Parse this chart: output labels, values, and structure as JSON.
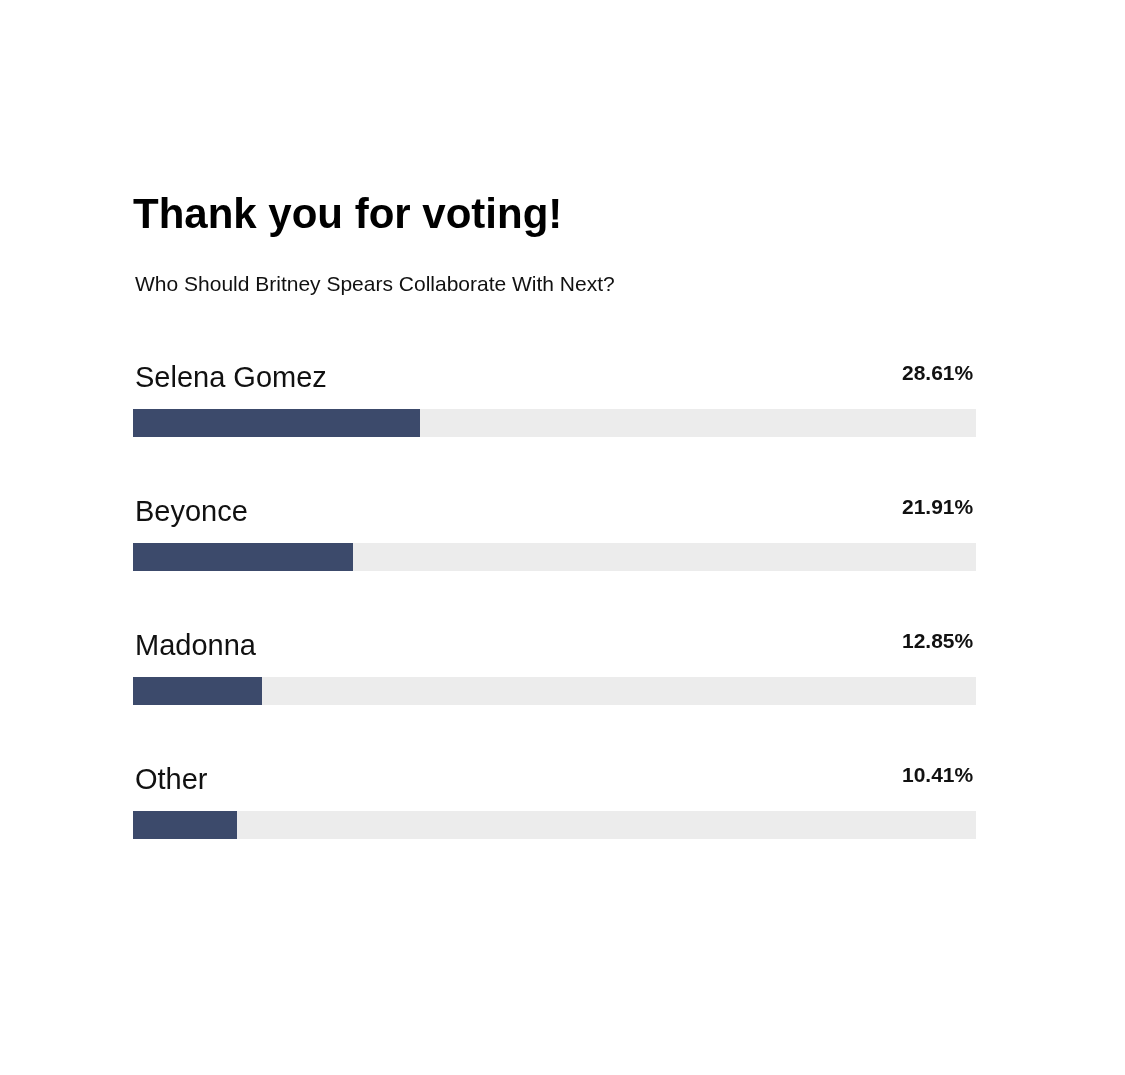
{
  "chart_data": {
    "type": "bar",
    "orientation": "horizontal",
    "title": "Thank you for voting!",
    "subtitle": "Who Should Britney Spears Collaborate With Next?",
    "categories": [
      "Selena Gomez",
      "Beyonce",
      "Madonna",
      "Other"
    ],
    "values": [
      28.61,
      21.91,
      12.85,
      10.41
    ],
    "value_labels": [
      "28.61%",
      "21.91%",
      "12.85%",
      "10.41%"
    ],
    "color": "#3c4a6b",
    "xlim": [
      0,
      84
    ],
    "tick_labels": "y"
  }
}
